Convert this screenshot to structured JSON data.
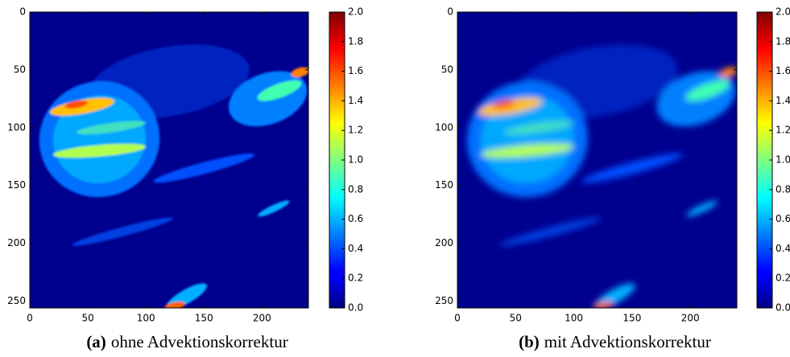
{
  "chart_data": [
    {
      "type": "heatmap",
      "colormap": "jet",
      "smoothed": false,
      "xlim": [
        0,
        240
      ],
      "ylim": [
        256,
        0
      ],
      "xticks": [
        0,
        50,
        100,
        150,
        200
      ],
      "yticks": [
        0,
        50,
        100,
        150,
        200,
        250
      ],
      "colorbar_lim": [
        0,
        2
      ],
      "colorbar_ticks": [
        {
          "value": 0,
          "label": "0.0"
        },
        0.2,
        0.4,
        0.6,
        0.8,
        {
          "value": 1,
          "label": "1.0"
        },
        1.2,
        1.4,
        1.6,
        1.8,
        {
          "value": 2,
          "label": "2.0"
        }
      ],
      "caption": {
        "label": "(a)",
        "text": "ohne Advektionskorrektur"
      }
    },
    {
      "type": "heatmap",
      "colormap": "jet",
      "smoothed": true,
      "xlim": [
        0,
        240
      ],
      "ylim": [
        256,
        0
      ],
      "xticks": [
        0,
        50,
        100,
        150,
        200
      ],
      "yticks": [
        0,
        50,
        100,
        150,
        200,
        250
      ],
      "colorbar_lim": [
        0,
        2
      ],
      "colorbar_ticks": [
        {
          "value": 0,
          "label": "0.0"
        },
        0.2,
        0.4,
        0.6,
        0.8,
        {
          "value": 1,
          "label": "1.0"
        },
        1.2,
        1.4,
        1.6,
        1.8,
        {
          "value": 2,
          "label": "2.0"
        }
      ],
      "caption": {
        "label": "(b)",
        "text": "mit Advektionskorrektur"
      }
    }
  ]
}
